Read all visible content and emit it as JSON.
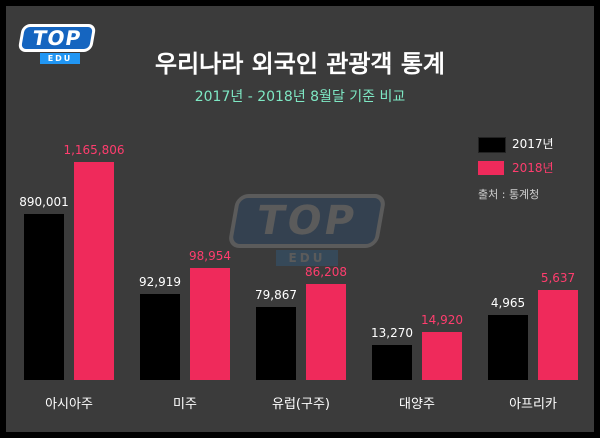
{
  "header": {
    "title": "우리나라 외국인 관광객 통계",
    "subtitle": "2017년 - 2018년 8월달 기준 비교"
  },
  "logo": {
    "text": "TOP",
    "subtext": "EDU"
  },
  "watermark": {
    "text": "TOP",
    "subtext": "EDU"
  },
  "source": "출처 : 통계청",
  "colors": {
    "background": "#3b3b3b",
    "series_2017": "#000000",
    "series_2018": "#ef2a5b",
    "label_2017": "#ffffff",
    "label_2018": "#ff3d6e",
    "subtitle": "#7ee8c4"
  },
  "chart_data": {
    "type": "bar",
    "categories": [
      "아시아주",
      "미주",
      "유럽(구주)",
      "대양주",
      "아프리카"
    ],
    "series": [
      {
        "name": "2017년",
        "values": [
          890001,
          92919,
          79867,
          13270,
          4965
        ],
        "labels": [
          "890,001",
          "92,919",
          "79,867",
          "13,270",
          "4,965"
        ]
      },
      {
        "name": "2018년",
        "values": [
          1165806,
          98954,
          86208,
          14920,
          5637
        ],
        "labels": [
          "1,165,806",
          "98,954",
          "86,208",
          "14,920",
          "5,637"
        ]
      }
    ],
    "title": "우리나라 외국인 관광객 통계",
    "subtitle": "2017년 - 2018년 8월달 기준 비교",
    "legend_position": "right",
    "grid": false
  }
}
